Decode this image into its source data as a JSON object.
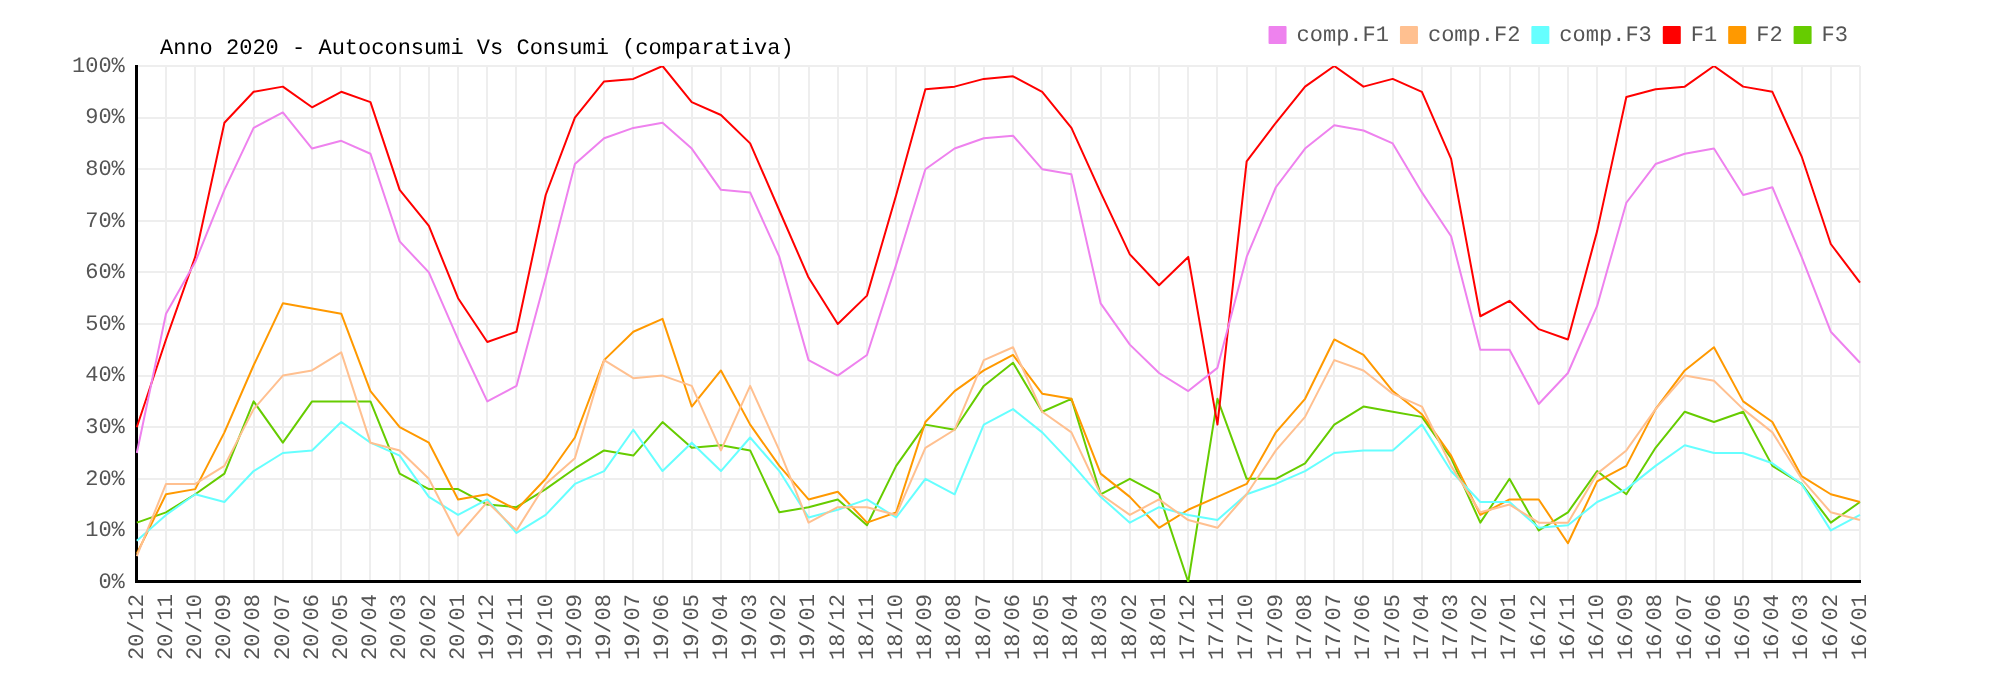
{
  "chart_data": {
    "type": "line",
    "title": "Anno 2020 - Autoconsumi Vs Consumi (comparativa)",
    "categories": [
      "20/12",
      "20/11",
      "20/10",
      "20/09",
      "20/08",
      "20/07",
      "20/06",
      "20/05",
      "20/04",
      "20/03",
      "20/02",
      "20/01",
      "19/12",
      "19/11",
      "19/10",
      "19/09",
      "19/08",
      "19/07",
      "19/06",
      "19/05",
      "19/04",
      "19/03",
      "19/02",
      "19/01",
      "18/12",
      "18/11",
      "18/10",
      "18/09",
      "18/08",
      "18/07",
      "18/06",
      "18/05",
      "18/04",
      "18/03",
      "18/02",
      "18/01",
      "17/12",
      "17/11",
      "17/10",
      "17/09",
      "17/08",
      "17/07",
      "17/06",
      "17/05",
      "17/04",
      "17/03",
      "17/02",
      "17/01",
      "16/12",
      "16/11",
      "16/10",
      "16/09",
      "16/08",
      "16/07",
      "16/06",
      "16/05",
      "16/04",
      "16/03",
      "16/02",
      "16/01"
    ],
    "series": [
      {
        "name": "comp.F1",
        "color": "#ee82ee",
        "values": [
          25,
          52,
          62,
          76,
          88,
          91,
          84,
          85.5,
          83,
          66,
          60,
          47,
          35,
          38,
          59,
          81,
          86,
          88,
          89,
          84,
          76,
          75.5,
          63,
          43,
          40,
          44,
          61.5,
          80,
          84,
          86,
          86.5,
          80,
          79,
          54,
          46,
          40.5,
          37,
          41.5,
          63,
          76.5,
          84,
          88.5,
          87.5,
          85,
          75.5,
          67,
          45,
          45,
          34.5,
          40.5,
          53.5,
          73.5,
          81,
          83,
          84,
          75,
          76.5,
          63,
          48.5,
          42.5
        ]
      },
      {
        "name": "comp.F2",
        "color": "#ffc090",
        "values": [
          5,
          19,
          19,
          22.5,
          33.5,
          40,
          41,
          44.5,
          27,
          25.5,
          20,
          9,
          15.5,
          10,
          19,
          24,
          43,
          39.5,
          40,
          38,
          25.5,
          38,
          25.5,
          11.5,
          14.5,
          14.5,
          13,
          26,
          29.5,
          43,
          45.5,
          33,
          29,
          17,
          13,
          16,
          12,
          10.5,
          17,
          25.5,
          32,
          43,
          41,
          36.5,
          34,
          22.5,
          13.5,
          15,
          11.5,
          11.5,
          21,
          25.5,
          33.5,
          40,
          39,
          33.5,
          29,
          20,
          13.5,
          12
        ]
      },
      {
        "name": "comp.F3",
        "color": "#66ffff",
        "values": [
          8,
          13,
          17,
          15.5,
          21.5,
          25,
          25.5,
          31,
          27,
          24.5,
          16.5,
          13,
          16,
          9.5,
          13,
          19,
          21.5,
          29.5,
          21.5,
          27,
          21.5,
          28,
          21.5,
          12.5,
          14,
          16,
          12.5,
          20,
          17,
          30.5,
          33.5,
          29,
          23,
          16.5,
          11.5,
          14.5,
          13,
          12,
          17,
          19,
          21.5,
          25,
          25.5,
          25.5,
          30.5,
          21.5,
          15.5,
          15.5,
          10.5,
          11,
          15.5,
          18,
          22.5,
          26.5,
          25,
          25,
          23,
          19,
          10,
          13
        ]
      },
      {
        "name": "F1",
        "color": "#ff0000",
        "values": [
          30,
          47,
          63,
          89,
          95,
          96,
          92,
          95,
          93,
          76,
          69,
          55,
          46.5,
          48.5,
          75,
          90,
          97,
          97.5,
          100,
          93,
          90.5,
          85,
          72,
          59,
          50,
          55.5,
          75,
          95.5,
          96,
          97.5,
          98,
          95,
          88,
          75.5,
          63.5,
          57.5,
          63,
          30.5,
          81.5,
          89,
          96,
          100,
          96,
          97.5,
          95,
          82,
          51.5,
          54.5,
          49,
          47,
          68,
          94,
          95.5,
          96,
          100,
          96,
          95,
          82.5,
          65.5,
          58
        ]
      },
      {
        "name": "F2",
        "color": "#ff9900",
        "values": [
          5.5,
          17,
          18,
          29,
          42,
          54,
          53,
          52,
          37,
          30,
          27,
          16,
          17,
          14,
          20,
          28,
          43,
          48.5,
          51,
          34,
          41,
          30.5,
          22.5,
          16,
          17.5,
          11.5,
          13.5,
          31,
          37,
          41,
          44,
          36.5,
          35.5,
          21,
          16.5,
          10.5,
          14,
          16.5,
          19,
          29,
          35.5,
          47,
          44,
          37,
          32.5,
          24.5,
          13,
          16,
          16,
          7.5,
          19.5,
          22.5,
          33.5,
          41,
          45.5,
          35,
          31,
          20.5,
          17,
          15.5
        ]
      },
      {
        "name": "F3",
        "color": "#66cc00",
        "values": [
          11.5,
          13.5,
          17,
          21,
          35,
          27,
          35,
          35,
          35,
          21,
          18,
          18,
          15,
          14.5,
          18,
          22,
          25.5,
          24.5,
          31,
          26,
          26.5,
          25.5,
          13.5,
          14.5,
          16,
          11,
          22.5,
          30.5,
          29.5,
          38,
          42.5,
          33,
          35.5,
          17,
          20,
          17,
          0,
          35.5,
          20,
          20,
          23,
          30.5,
          34,
          33,
          32,
          24,
          11.5,
          20,
          10,
          13.5,
          21.5,
          17,
          26,
          33,
          31,
          33,
          22.5,
          19,
          11.5,
          15.5
        ]
      }
    ],
    "ylim": [
      0,
      100
    ],
    "yticks": [
      {
        "value": 0,
        "label": "0%"
      },
      {
        "value": 10,
        "label": "10%"
      },
      {
        "value": 20,
        "label": "20%"
      },
      {
        "value": 30,
        "label": "30%"
      },
      {
        "value": 40,
        "label": "40%"
      },
      {
        "value": 50,
        "label": "50%"
      },
      {
        "value": 60,
        "label": "60%"
      },
      {
        "value": 70,
        "label": "70%"
      },
      {
        "value": 80,
        "label": "80%"
      },
      {
        "value": 90,
        "label": "90%"
      },
      {
        "value": 100,
        "label": "100%"
      }
    ],
    "grid": true,
    "legend": "top right",
    "marker": "none",
    "line_style": "solid"
  }
}
